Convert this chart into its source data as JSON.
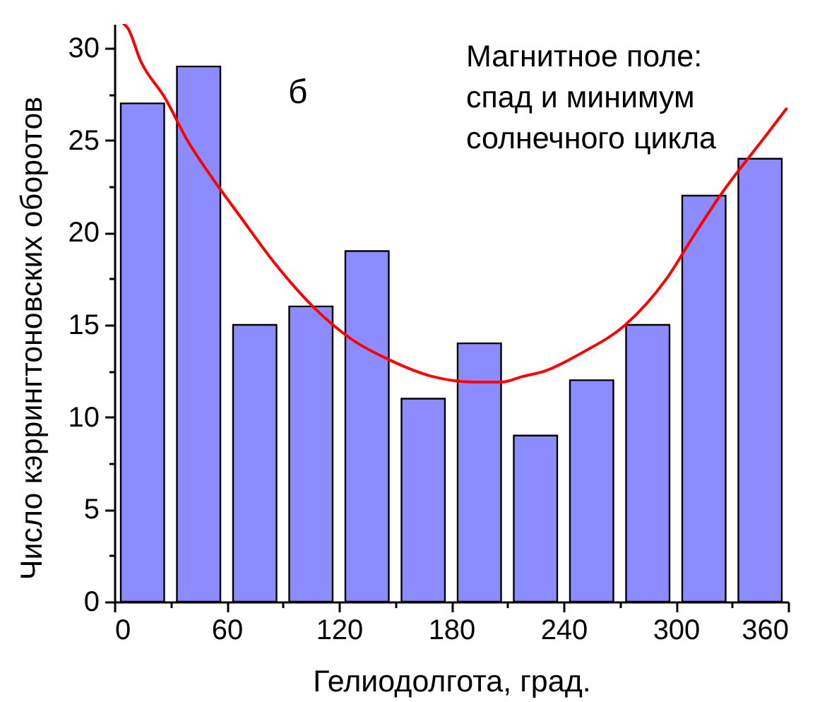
{
  "chart_data": {
    "type": "histogram",
    "xlabel": "Гелиодолгота, град.",
    "ylabel": "Число кэррингтоновских оборотов",
    "annotations": [
      "б",
      "Магнитное поле:\nспад и минимум\nсолнечного цикла"
    ],
    "bins": [
      0,
      30,
      60,
      90,
      120,
      150,
      180,
      210,
      240,
      270,
      300,
      330,
      360
    ],
    "series": [
      {
        "color": "#0000ff",
        "values": [
          27,
          29,
          15,
          16,
          19,
          11,
          14,
          9,
          12,
          15,
          22,
          24
        ]
      },
      {
        "type": "line",
        "color": "#ff0000",
        "x": [
          5,
          7,
          14,
          27,
          39,
          52,
          67,
          86,
          106,
          127,
          147,
          170,
          192,
          207,
          218,
          230,
          250,
          273,
          295,
          310,
          325,
          340,
          350,
          359
        ],
        "values": [
          31.3,
          31.1,
          29.3,
          27.3,
          25.0,
          23.0,
          20.9,
          18.3,
          16.0,
          14.2,
          13.1,
          12.2,
          11.9,
          11.9,
          12.2,
          12.5,
          13.5,
          15.0,
          17.5,
          19.9,
          22.2,
          24.2,
          25.5,
          26.7
        ]
      }
    ],
    "xlim": [
      0,
      360
    ],
    "xticks": [
      0,
      {
        "value": 30,
        "label": null
      },
      60,
      {
        "value": 90,
        "label": null
      },
      120,
      {
        "value": 150,
        "label": null
      },
      180,
      {
        "value": 210,
        "label": null
      },
      240,
      {
        "value": 270,
        "label": null
      },
      300,
      {
        "value": 330,
        "label": null
      },
      360
    ],
    "ylim": [
      0,
      31.3
    ],
    "yticks": [
      0,
      {
        "value": 2.5,
        "label": null
      },
      5,
      {
        "value": 7.5,
        "label": null
      },
      10,
      {
        "value": 12.5,
        "label": null
      },
      15,
      {
        "value": 17.5,
        "label": null
      },
      20,
      {
        "value": 22.5,
        "label": null
      },
      25,
      {
        "value": 27.5,
        "label": null
      },
      30
    ]
  }
}
